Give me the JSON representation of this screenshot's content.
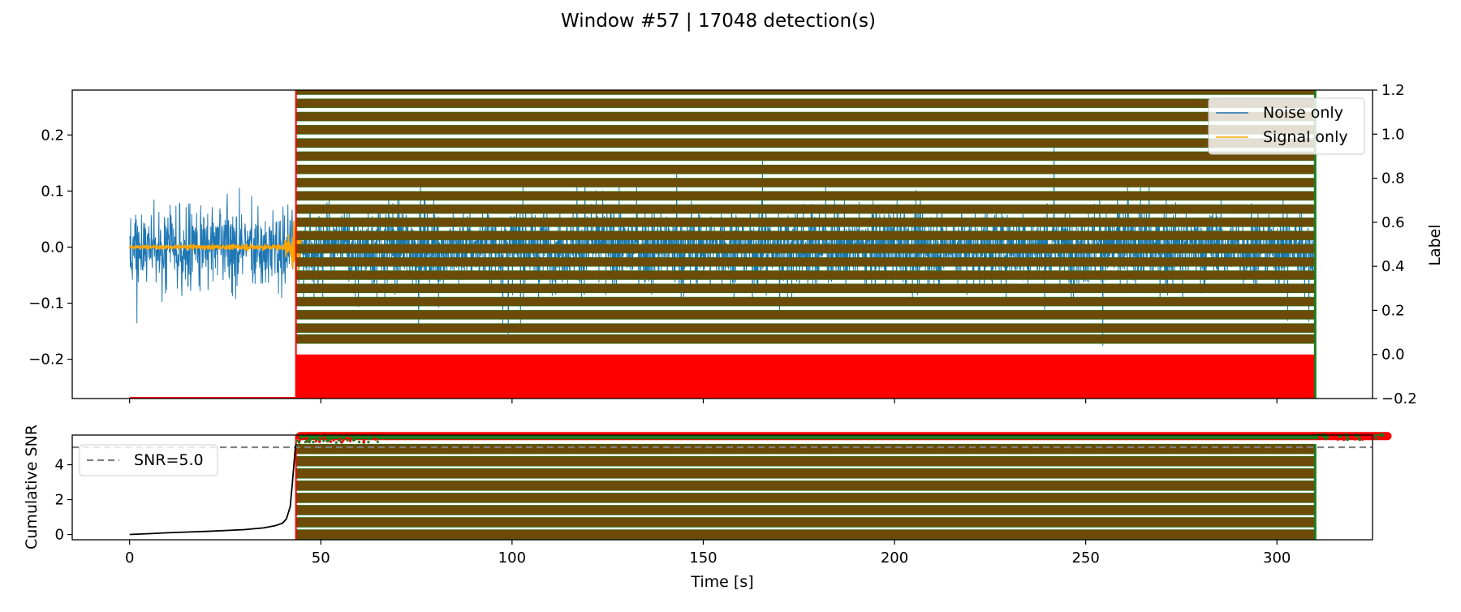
{
  "figure": {
    "title": "Window #57 | 17048 detection(s)"
  },
  "chart_data": [
    {
      "type": "line",
      "panel": "top",
      "title": "",
      "xlabel": "",
      "ylabel": "",
      "y2label": "Label",
      "xlim": [
        -15,
        325
      ],
      "ylim": [
        -0.27,
        0.28
      ],
      "y2lim": [
        -0.2,
        1.2
      ],
      "x_ticks": [
        0,
        50,
        100,
        150,
        200,
        250,
        300
      ],
      "y_ticks": [
        -0.2,
        -0.1,
        0.0,
        0.1,
        0.2
      ],
      "y_tick_labels": [
        "−0.2",
        "−0.1",
        "0.0",
        "0.1",
        "0.2"
      ],
      "y2_ticks": [
        -0.2,
        0.0,
        0.2,
        0.4,
        0.6,
        0.8,
        1.0,
        1.2
      ],
      "y2_tick_labels": [
        "−0.2",
        "0.0",
        "0.2",
        "0.4",
        "0.6",
        "0.8",
        "1.0",
        "1.2"
      ],
      "legend_position": "upper right",
      "series": [
        {
          "name": "Noise only",
          "color": "#1f77b4",
          "description_values": {
            "x_range": [
              0,
              310
            ],
            "amplitude_range": [
              -0.25,
              0.225
            ],
            "typical_std": 0.05
          }
        },
        {
          "name": "Signal only",
          "color": "#ffa500",
          "description_values": {
            "x_range": [
              0,
              45
            ],
            "onset_x": 43.5,
            "peak_amplitude": 0.06
          }
        }
      ],
      "detection_overlay": {
        "x_range": [
          43.5,
          310
        ],
        "label_levels": [
          -0.2,
          0.0,
          0.07,
          0.12,
          0.18,
          0.24,
          0.3,
          0.36,
          0.42,
          0.48,
          0.54,
          0.6,
          0.66,
          0.72,
          0.78,
          0.84,
          0.9,
          0.96,
          1.02,
          1.08,
          1.14,
          1.2
        ],
        "fill_color": "#ff0000",
        "band_color": "#6b4b07",
        "edge_color": "#1e7b1e"
      }
    },
    {
      "type": "line",
      "panel": "bottom",
      "title": "",
      "xlabel": "Time [s]",
      "ylabel": "Cumulative SNR",
      "xlim": [
        -15,
        325
      ],
      "ylim": [
        -0.3,
        5.7
      ],
      "x_ticks": [
        0,
        50,
        100,
        150,
        200,
        250,
        300
      ],
      "y_ticks": [
        0,
        2,
        4
      ],
      "legend_position": "upper left",
      "threshold": {
        "name": "SNR=5.0",
        "value": 5.0,
        "color": "#808080"
      },
      "series": [
        {
          "name": "",
          "color": "#000000",
          "x": [
            0,
            5,
            10,
            15,
            20,
            25,
            30,
            35,
            38,
            40,
            41,
            42,
            42.5,
            43,
            43.3,
            43.5
          ],
          "y": [
            0.0,
            0.05,
            0.1,
            0.14,
            0.18,
            0.23,
            0.28,
            0.38,
            0.5,
            0.65,
            0.9,
            1.6,
            2.8,
            4.1,
            4.9,
            5.2
          ]
        }
      ],
      "detection_overlay": {
        "x_range": [
          43.5,
          310
        ],
        "band_levels": [
          0.0,
          0.7,
          1.4,
          2.1,
          2.8,
          3.5,
          4.2,
          4.9
        ],
        "top_level": 5.55,
        "tail_x_end": 330,
        "fill_color": "#ff0000",
        "band_color": "#6b4b07",
        "edge_color": "#1e7b1e"
      }
    }
  ]
}
